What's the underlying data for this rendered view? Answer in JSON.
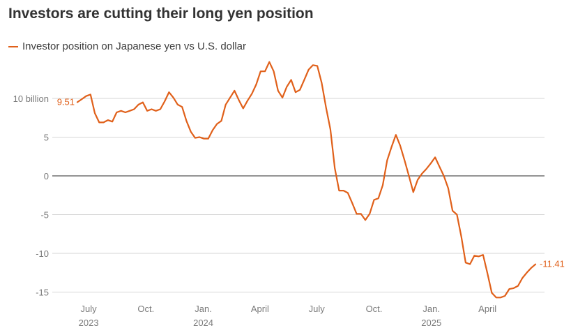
{
  "chart_data": {
    "type": "line",
    "title": "Investors are cutting their long yen position",
    "series": [
      {
        "name": "Investor position on Japanese yen vs U.S. dollar",
        "color": "#e0601a",
        "x": [
          "2023-06-13",
          "2023-06-20",
          "2023-06-27",
          "2023-07-04",
          "2023-07-11",
          "2023-07-18",
          "2023-07-25",
          "2023-08-01",
          "2023-08-08",
          "2023-08-15",
          "2023-08-22",
          "2023-08-29",
          "2023-09-05",
          "2023-09-12",
          "2023-09-19",
          "2023-09-26",
          "2023-10-03",
          "2023-10-10",
          "2023-10-17",
          "2023-10-24",
          "2023-10-31",
          "2023-11-07",
          "2023-11-14",
          "2023-11-21",
          "2023-11-28",
          "2023-12-05",
          "2023-12-12",
          "2023-12-19",
          "2023-12-26",
          "2024-01-02",
          "2024-01-09",
          "2024-01-16",
          "2024-01-23",
          "2024-01-30",
          "2024-02-06",
          "2024-02-13",
          "2024-02-20",
          "2024-02-27",
          "2024-03-05",
          "2024-03-12",
          "2024-03-19",
          "2024-03-26",
          "2024-04-02",
          "2024-04-09",
          "2024-04-16",
          "2024-04-23",
          "2024-04-30",
          "2024-05-07",
          "2024-05-14",
          "2024-05-21",
          "2024-05-28",
          "2024-06-04",
          "2024-06-11",
          "2024-06-18",
          "2024-06-25",
          "2024-07-02",
          "2024-07-09",
          "2024-07-16",
          "2024-07-23",
          "2024-07-30",
          "2024-08-06",
          "2024-08-13",
          "2024-08-20",
          "2024-08-27",
          "2024-09-03",
          "2024-09-10",
          "2024-09-17",
          "2024-09-24",
          "2024-10-01",
          "2024-10-08",
          "2024-10-15",
          "2024-10-22",
          "2024-10-29",
          "2024-11-05",
          "2024-11-12",
          "2024-11-19",
          "2024-11-26",
          "2024-12-03",
          "2024-12-10",
          "2024-12-17",
          "2024-12-24",
          "2024-12-31",
          "2025-01-07",
          "2025-01-14",
          "2025-01-21",
          "2025-01-28",
          "2025-02-04",
          "2025-02-11",
          "2025-02-18",
          "2025-02-25",
          "2025-03-04",
          "2025-03-11",
          "2025-03-18",
          "2025-03-25",
          "2025-04-01",
          "2025-04-08",
          "2025-04-15",
          "2025-04-22",
          "2025-04-29",
          "2025-05-06",
          "2025-05-13",
          "2025-05-20",
          "2025-05-27",
          "2025-06-03",
          "2025-06-10",
          "2025-06-17"
        ],
        "values": [
          9.51,
          9.9,
          10.3,
          10.5,
          8.1,
          6.9,
          6.9,
          7.2,
          7.0,
          8.2,
          8.4,
          8.2,
          8.4,
          8.6,
          9.2,
          9.5,
          8.4,
          8.6,
          8.4,
          8.6,
          9.6,
          10.8,
          10.1,
          9.2,
          8.9,
          7.1,
          5.7,
          4.9,
          5.0,
          4.8,
          4.8,
          5.9,
          6.7,
          7.1,
          9.2,
          10.1,
          11.0,
          9.8,
          8.7,
          9.7,
          10.6,
          11.8,
          13.5,
          13.5,
          14.7,
          13.5,
          11.0,
          10.1,
          11.5,
          12.4,
          10.8,
          11.1,
          12.4,
          13.7,
          14.3,
          14.2,
          12.0,
          8.8,
          6.0,
          1.0,
          -1.9,
          -1.9,
          -2.2,
          -3.5,
          -4.9,
          -4.9,
          -5.7,
          -4.9,
          -3.1,
          -2.9,
          -1.2,
          2.0,
          3.7,
          5.3,
          3.9,
          2.0,
          0.0,
          -2.1,
          -0.5,
          0.3,
          0.9,
          1.6,
          2.4,
          1.2,
          0.0,
          -1.6,
          -4.5,
          -5.0,
          -7.8,
          -11.2,
          -11.4,
          -10.3,
          -10.4,
          -10.2,
          -12.6,
          -15.1,
          -15.7,
          -15.7,
          -15.5,
          -14.6,
          -14.5,
          -14.2,
          -13.2,
          -12.5,
          -11.9,
          -11.41
        ]
      }
    ],
    "y_ticks": [
      {
        "value": 10,
        "label": "10 billion"
      },
      {
        "value": 5,
        "label": "5"
      },
      {
        "value": 0,
        "label": "0"
      },
      {
        "value": -5,
        "label": "-5"
      },
      {
        "value": -10,
        "label": "-10"
      },
      {
        "value": -15,
        "label": "-15"
      }
    ],
    "x_ticks": [
      {
        "date": "2023-07-01",
        "label": "July",
        "year": "2023"
      },
      {
        "date": "2023-10-01",
        "label": "Oct.",
        "year": ""
      },
      {
        "date": "2024-01-01",
        "label": "Jan.",
        "year": "2024"
      },
      {
        "date": "2024-04-01",
        "label": "April",
        "year": ""
      },
      {
        "date": "2024-07-01",
        "label": "July",
        "year": ""
      },
      {
        "date": "2024-10-01",
        "label": "Oct.",
        "year": ""
      },
      {
        "date": "2025-01-01",
        "label": "Jan.",
        "year": "2025"
      },
      {
        "date": "2025-04-01",
        "label": "April",
        "year": ""
      }
    ],
    "start_label": "9.51",
    "end_label": "-11.41",
    "ylim": [
      -16,
      15
    ],
    "grid": true,
    "legend_position": "top-left"
  }
}
